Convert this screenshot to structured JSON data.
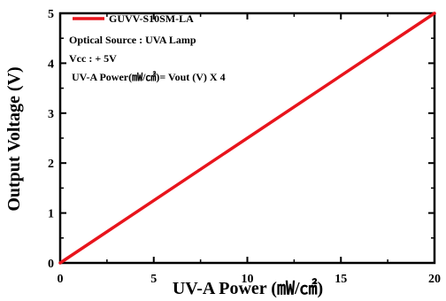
{
  "chart_data": {
    "type": "line",
    "xlabel": "UV-A Power (㎽/㎠)",
    "ylabel": "Output Voltage (V)",
    "xlim": [
      0,
      20
    ],
    "ylim": [
      0,
      5
    ],
    "x_ticks": [
      "0",
      "5",
      "10",
      "15",
      "20"
    ],
    "y_ticks": [
      "0",
      "1",
      "2",
      "3",
      "4",
      "5"
    ],
    "grid": false,
    "legend_position": "top-left",
    "series": [
      {
        "name": "GUVV-S10SM-LA",
        "color": "#e8141c",
        "x": [
          0,
          20
        ],
        "y": [
          0,
          5
        ]
      }
    ],
    "annotations": [
      "Optical Source : UVA Lamp",
      "Vcc : + 5V",
      "UV-A Power(㎽/㎠)= Vout (V) X 4"
    ]
  }
}
